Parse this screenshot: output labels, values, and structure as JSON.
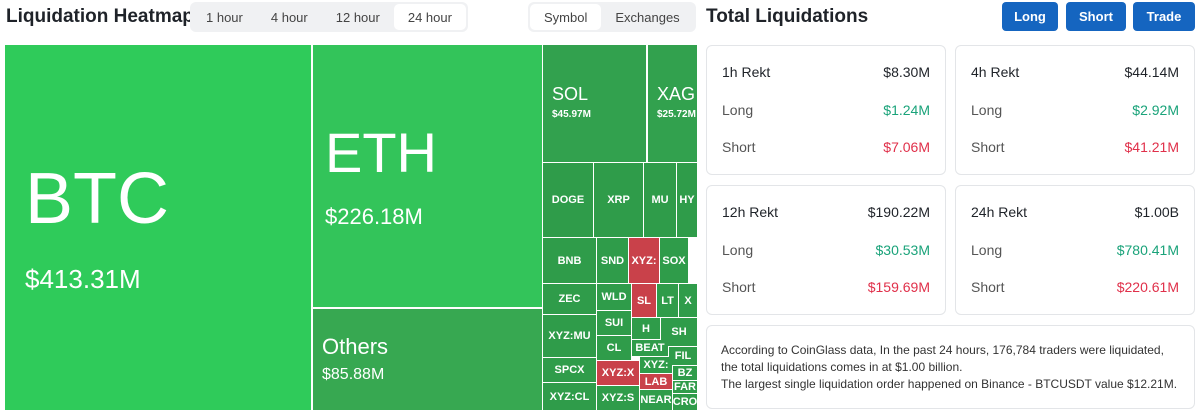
{
  "header": {
    "title": "Liquidation Heatmap",
    "tabs": [
      "1 hour",
      "4 hour",
      "12 hour",
      "24 hour"
    ],
    "toggle": [
      "Symbol",
      "Exchanges"
    ]
  },
  "treemap": {
    "cells": [
      {
        "label": "BTC",
        "value": "$413.31M"
      },
      {
        "label": "ETH",
        "value": "$226.18M"
      },
      {
        "label": "Others",
        "value": "$85.88M"
      },
      {
        "label": "SOL",
        "value": "$45.97M"
      },
      {
        "label": "XAG",
        "value": "$25.72M"
      },
      {
        "label": "DOGE"
      },
      {
        "label": "XRP"
      },
      {
        "label": "MU"
      },
      {
        "label": "HY"
      },
      {
        "label": "BNB"
      },
      {
        "label": "SND"
      },
      {
        "label": "XYZ:"
      },
      {
        "label": "SOX"
      },
      {
        "label": "ZEC"
      },
      {
        "label": "WLD"
      },
      {
        "label": "SL"
      },
      {
        "label": "LT"
      },
      {
        "label": "X"
      },
      {
        "label": "XYZ:MU"
      },
      {
        "label": "SUI"
      },
      {
        "label": "H"
      },
      {
        "label": "SH"
      },
      {
        "label": "CL"
      },
      {
        "label": "BEAT"
      },
      {
        "label": "FIL"
      },
      {
        "label": "SPCX"
      },
      {
        "label": "XYZ:X"
      },
      {
        "label": "XYZ:"
      },
      {
        "label": "BZ"
      },
      {
        "label": "LAB"
      },
      {
        "label": "FAR"
      },
      {
        "label": "XYZ:CL"
      },
      {
        "label": "XYZ:S"
      },
      {
        "label": "NEAR"
      },
      {
        "label": "CRO"
      }
    ]
  },
  "panel": {
    "title": "Total Liquidations",
    "buttons": [
      "Long",
      "Short",
      "Trade"
    ],
    "cards": [
      {
        "title": "1h Rekt",
        "total": "$8.30M",
        "long_label": "Long",
        "long": "$1.24M",
        "short_label": "Short",
        "short": "$7.06M"
      },
      {
        "title": "4h Rekt",
        "total": "$44.14M",
        "long_label": "Long",
        "long": "$2.92M",
        "short_label": "Short",
        "short": "$41.21M"
      },
      {
        "title": "12h Rekt",
        "total": "$190.22M",
        "long_label": "Long",
        "long": "$30.53M",
        "short_label": "Short",
        "short": "$159.69M"
      },
      {
        "title": "24h Rekt",
        "total": "$1.00B",
        "long_label": "Long",
        "long": "$780.41M",
        "short_label": "Short",
        "short": "$220.61M"
      }
    ],
    "note": [
      "According to CoinGlass data, In the past 24 hours, 176,784 traders were liquidated, the total liquidations comes in at $1.00 billion.",
      "The largest single liquidation order happened on Binance - BTCUSDT value $12.21M."
    ]
  }
}
